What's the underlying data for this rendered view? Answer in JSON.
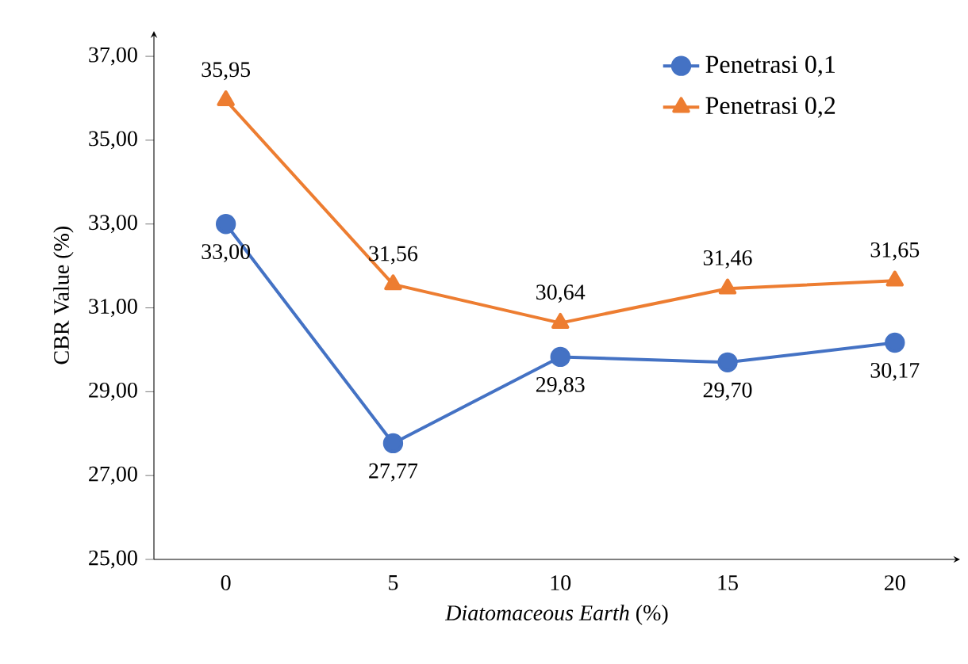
{
  "chart_data": {
    "type": "line",
    "xlabel": "*Diatomaceous Earth* (%)",
    "ylabel": "CBR Value (%)",
    "categories": [
      "0",
      "5",
      "10",
      "15",
      "20"
    ],
    "series": [
      {
        "name": "Penetrasi 0,1",
        "color": "#4472c4",
        "marker": "circle",
        "values": [
          33.0,
          27.77,
          29.83,
          29.7,
          30.17
        ],
        "value_labels": [
          "33,00",
          "27,77",
          "29,83",
          "29,70",
          "30,17"
        ]
      },
      {
        "name": "Penetrasi 0,2",
        "color": "#ed7d31",
        "marker": "triangle",
        "values": [
          35.95,
          31.56,
          30.64,
          31.46,
          31.65
        ],
        "value_labels": [
          "35,95",
          "31,56",
          "30,64",
          "31,46",
          "31,65"
        ]
      }
    ],
    "ylim": [
      25,
      37.6
    ],
    "yticks": [
      {
        "value": 25,
        "label": "25,00"
      },
      {
        "value": 27,
        "label": "27,00"
      },
      {
        "value": 29,
        "label": "29,00"
      },
      {
        "value": 31,
        "label": "31,00"
      },
      {
        "value": 33,
        "label": "33,00"
      },
      {
        "value": 35,
        "label": "35,00"
      },
      {
        "value": 37,
        "label": "37,00"
      }
    ],
    "grid": false,
    "legend": "top right",
    "line_style": "solid"
  }
}
